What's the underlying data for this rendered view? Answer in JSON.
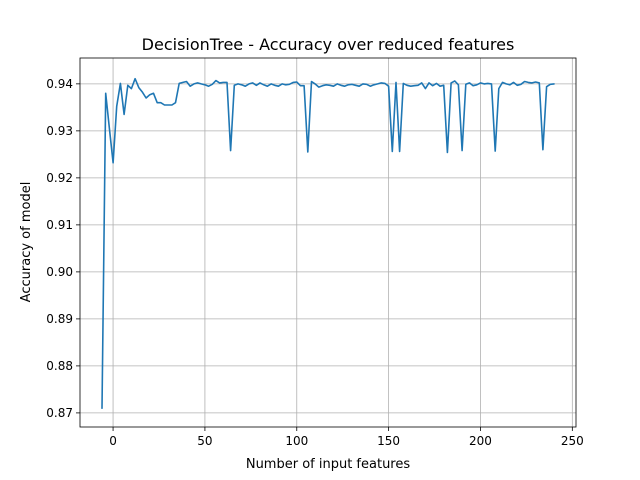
{
  "chart_data": {
    "type": "line",
    "title": "DecisionTree - Accuracy over reduced features",
    "xlabel": "Number of input features",
    "ylabel": "Accuracy of model",
    "xlim": [
      -18,
      252
    ],
    "ylim": [
      0.867,
      0.9455
    ],
    "xticks": [
      {
        "value": 0,
        "label": "0"
      },
      {
        "value": 50,
        "label": "50"
      },
      {
        "value": 100,
        "label": "100"
      },
      {
        "value": 150,
        "label": "150"
      },
      {
        "value": 200,
        "label": "200"
      },
      {
        "value": 250,
        "label": "250"
      }
    ],
    "yticks": [
      {
        "value": 0.87,
        "label": "0.87"
      },
      {
        "value": 0.88,
        "label": "0.88"
      },
      {
        "value": 0.89,
        "label": "0.89"
      },
      {
        "value": 0.9,
        "label": "0.90"
      },
      {
        "value": 0.91,
        "label": "0.91"
      },
      {
        "value": 0.92,
        "label": "0.92"
      },
      {
        "value": 0.93,
        "label": "0.93"
      },
      {
        "value": 0.94,
        "label": "0.94"
      }
    ],
    "grid": true,
    "color": "#1f77b4",
    "series": [
      {
        "x": [
          -6,
          -4,
          -2,
          0,
          2,
          4,
          6,
          8,
          10,
          12,
          14,
          16,
          18,
          20,
          22,
          24,
          26,
          28,
          30,
          32,
          34,
          36,
          38,
          40,
          42,
          44,
          46,
          48,
          50,
          52,
          54,
          56,
          58,
          60,
          62,
          64,
          66,
          68,
          70,
          72,
          74,
          76,
          78,
          80,
          82,
          84,
          86,
          88,
          90,
          92,
          94,
          96,
          98,
          100,
          102,
          104,
          106,
          108,
          110,
          112,
          114,
          116,
          118,
          120,
          122,
          124,
          126,
          128,
          130,
          132,
          134,
          136,
          138,
          140,
          142,
          144,
          146,
          148,
          150,
          152,
          154,
          156,
          158,
          160,
          162,
          164,
          166,
          168,
          170,
          172,
          174,
          176,
          178,
          180,
          182,
          184,
          186,
          188,
          190,
          192,
          194,
          196,
          198,
          200,
          202,
          204,
          206,
          208,
          210,
          212,
          214,
          216,
          218,
          220,
          222,
          224,
          226,
          228,
          230,
          232,
          234,
          236,
          238,
          240
        ],
        "y": [
          0.871,
          0.938,
          0.9305,
          0.9232,
          0.9352,
          0.9401,
          0.9335,
          0.9397,
          0.939,
          0.9411,
          0.9392,
          0.9382,
          0.937,
          0.9377,
          0.938,
          0.936,
          0.936,
          0.9355,
          0.9355,
          0.9355,
          0.936,
          0.9401,
          0.9403,
          0.9405,
          0.9395,
          0.94,
          0.9402,
          0.94,
          0.9398,
          0.9395,
          0.9399,
          0.9407,
          0.9402,
          0.9403,
          0.9403,
          0.9258,
          0.9397,
          0.94,
          0.9398,
          0.9395,
          0.94,
          0.9402,
          0.9397,
          0.9402,
          0.9398,
          0.9395,
          0.94,
          0.9397,
          0.9395,
          0.94,
          0.9398,
          0.9399,
          0.9403,
          0.9404,
          0.9396,
          0.9396,
          0.9255,
          0.9405,
          0.94,
          0.9393,
          0.9396,
          0.9398,
          0.9397,
          0.9395,
          0.94,
          0.9397,
          0.9395,
          0.9398,
          0.9399,
          0.9397,
          0.9395,
          0.94,
          0.9399,
          0.9395,
          0.9398,
          0.94,
          0.9402,
          0.9401,
          0.9395,
          0.9256,
          0.9403,
          0.9256,
          0.9401,
          0.9397,
          0.9395,
          0.9396,
          0.9397,
          0.9402,
          0.939,
          0.9402,
          0.9396,
          0.9401,
          0.9395,
          0.9397,
          0.9254,
          0.9402,
          0.9406,
          0.9398,
          0.9258,
          0.9399,
          0.9402,
          0.9396,
          0.9398,
          0.9402,
          0.94,
          0.9401,
          0.94,
          0.9257,
          0.939,
          0.9403,
          0.94,
          0.9398,
          0.9403,
          0.9397,
          0.9399,
          0.9405,
          0.9403,
          0.9402,
          0.9404,
          0.9402,
          0.926,
          0.9394,
          0.9399,
          0.94
        ]
      }
    ]
  }
}
